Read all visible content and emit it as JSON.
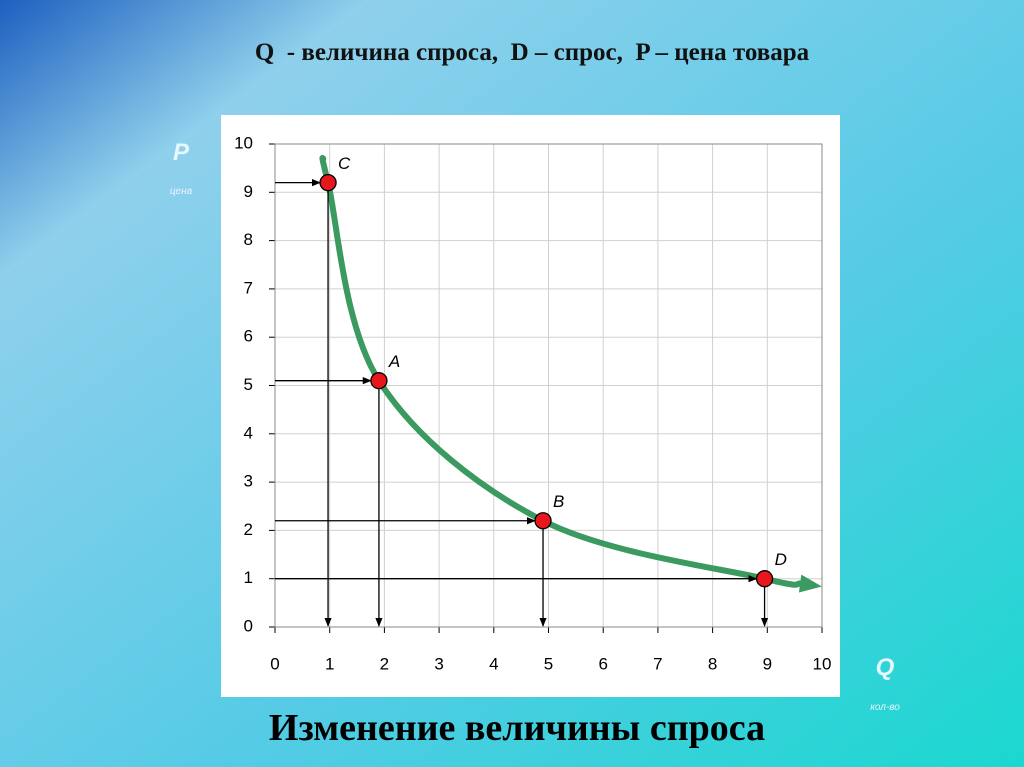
{
  "header": {
    "title": "Q  - величина спроса,  D – спрос,  P – цена товара"
  },
  "chart_data": {
    "type": "line",
    "title": "Изменение величины спроса",
    "y_label": "P",
    "y_sublabel": "цена",
    "x_label": "Q",
    "x_sublabel": "кол-во",
    "xlim": [
      0,
      10
    ],
    "ylim": [
      0,
      10
    ],
    "xticks": [
      0,
      1,
      2,
      3,
      4,
      5,
      6,
      7,
      8,
      9,
      10
    ],
    "yticks": [
      0,
      1,
      2,
      3,
      4,
      5,
      6,
      7,
      8,
      9,
      10
    ],
    "grid": true,
    "series": [
      {
        "color": "#3b9a5f",
        "x": [
          0.88,
          0.97,
          1.9,
          4.9,
          8.95,
          9.6
        ],
        "values": [
          9.7,
          9.2,
          5.1,
          2.2,
          1.0,
          0.9
        ]
      }
    ],
    "points": {
      "labels": [
        "C",
        "A",
        "B",
        "D"
      ],
      "color": "#e8171b",
      "x": [
        0.97,
        1.9,
        4.9,
        8.95
      ],
      "values": [
        9.2,
        5.1,
        2.2,
        1.0
      ]
    }
  }
}
